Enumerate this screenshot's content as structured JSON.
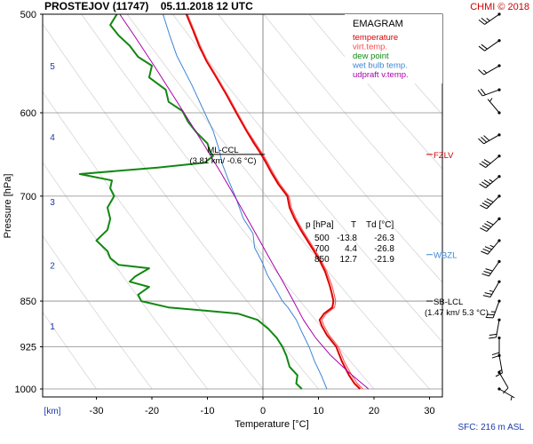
{
  "header": {
    "title": "PROSTEJOV (11747)    05.11.2018 12 UTC",
    "credit": "CHMI © 2018"
  },
  "chart_data": {
    "type": "line",
    "title": "PROSTEJOV (11747)    05.11.2018 12 UTC",
    "diagram_name": "EMAGRAM",
    "xlabel": "Temperature [°C]",
    "ylabel": "Pressure [hPa]",
    "xlim": [
      -37,
      30
    ],
    "ylim": [
      1000,
      500
    ],
    "y_scale": "log",
    "grid": true,
    "legend_position": "top-right",
    "x_ticks": [
      -30,
      -20,
      -10,
      0,
      10,
      20,
      30
    ],
    "y_ticks": [
      500,
      600,
      700,
      850,
      925,
      1000
    ],
    "height_unit_label": "[km]",
    "height_ticks": [
      {
        "label": "1",
        "p": 890
      },
      {
        "label": "2",
        "p": 795
      },
      {
        "label": "3",
        "p": 707
      },
      {
        "label": "4",
        "p": 627
      },
      {
        "label": "5",
        "p": 550
      }
    ],
    "series": [
      {
        "name": "temperature",
        "color": "#dd0000",
        "points": [
          [
            1000,
            17.5
          ],
          [
            990,
            16.5
          ],
          [
            975,
            15.5
          ],
          [
            950,
            14.2
          ],
          [
            925,
            13.2
          ],
          [
            905,
            11.5
          ],
          [
            890,
            10.6
          ],
          [
            880,
            10.2
          ],
          [
            870,
            11.0
          ],
          [
            860,
            12.5
          ],
          [
            850,
            12.7
          ],
          [
            838,
            12.4
          ],
          [
            825,
            12.0
          ],
          [
            805,
            11.2
          ],
          [
            790,
            10.3
          ],
          [
            775,
            9.2
          ],
          [
            760,
            8.0
          ],
          [
            745,
            6.8
          ],
          [
            730,
            5.7
          ],
          [
            715,
            4.8
          ],
          [
            700,
            4.4
          ],
          [
            685,
            2.8
          ],
          [
            670,
            1.5
          ],
          [
            655,
            0.3
          ],
          [
            645,
            -0.6
          ],
          [
            635,
            -1.6
          ],
          [
            620,
            -3.0
          ],
          [
            600,
            -4.8
          ],
          [
            580,
            -6.6
          ],
          [
            560,
            -8.6
          ],
          [
            545,
            -10.2
          ],
          [
            530,
            -11.5
          ],
          [
            515,
            -12.6
          ],
          [
            500,
            -13.8
          ]
        ]
      },
      {
        "name": "virt.temp.",
        "color": "#ff4a4a",
        "points": [
          [
            1000,
            18.0
          ],
          [
            990,
            17.0
          ],
          [
            975,
            16.0
          ],
          [
            950,
            14.6
          ],
          [
            925,
            13.6
          ],
          [
            905,
            11.9
          ],
          [
            890,
            11.0
          ],
          [
            880,
            10.6
          ],
          [
            870,
            11.4
          ],
          [
            860,
            12.9
          ],
          [
            850,
            13.1
          ],
          [
            838,
            12.8
          ],
          [
            825,
            12.4
          ],
          [
            805,
            11.5
          ],
          [
            790,
            10.6
          ],
          [
            775,
            9.5
          ],
          [
            760,
            8.3
          ],
          [
            745,
            7.1
          ],
          [
            730,
            6.0
          ],
          [
            715,
            5.1
          ],
          [
            700,
            4.7
          ],
          [
            685,
            3.1
          ],
          [
            670,
            1.8
          ],
          [
            655,
            0.6
          ],
          [
            645,
            -0.3
          ],
          [
            635,
            -1.3
          ],
          [
            620,
            -2.8
          ],
          [
            600,
            -4.6
          ],
          [
            580,
            -6.4
          ],
          [
            560,
            -8.4
          ],
          [
            545,
            -10.0
          ],
          [
            530,
            -11.3
          ],
          [
            515,
            -12.4
          ],
          [
            500,
            -13.6
          ]
        ]
      },
      {
        "name": "dew point",
        "color": "#118811",
        "points": [
          [
            1000,
            7.0
          ],
          [
            990,
            6.0
          ],
          [
            975,
            6.2
          ],
          [
            960,
            4.8
          ],
          [
            940,
            4.2
          ],
          [
            925,
            3.5
          ],
          [
            910,
            2.5
          ],
          [
            895,
            1.0
          ],
          [
            880,
            -1.0
          ],
          [
            870,
            -4.5
          ],
          [
            865,
            -10.5
          ],
          [
            860,
            -17.0
          ],
          [
            850,
            -21.9
          ],
          [
            840,
            -22.5
          ],
          [
            828,
            -20.5
          ],
          [
            820,
            -24.0
          ],
          [
            812,
            -23.0
          ],
          [
            800,
            -20.5
          ],
          [
            795,
            -26.0
          ],
          [
            785,
            -27.5
          ],
          [
            775,
            -28.0
          ],
          [
            760,
            -30.0
          ],
          [
            745,
            -28.0
          ],
          [
            730,
            -27.5
          ],
          [
            715,
            -28.0
          ],
          [
            700,
            -26.8
          ],
          [
            690,
            -27.5
          ],
          [
            680,
            -27.2
          ],
          [
            672,
            -33.0
          ],
          [
            664,
            -19.0
          ],
          [
            658,
            -10.5
          ],
          [
            650,
            -9.0
          ],
          [
            645,
            -9.5
          ],
          [
            635,
            -10.0
          ],
          [
            622,
            -12.0
          ],
          [
            610,
            -13.5
          ],
          [
            598,
            -14.5
          ],
          [
            588,
            -17.0
          ],
          [
            575,
            -17.5
          ],
          [
            562,
            -20.5
          ],
          [
            550,
            -20.0
          ],
          [
            541,
            -22.5
          ],
          [
            530,
            -24.0
          ],
          [
            520,
            -26.0
          ],
          [
            510,
            -27.5
          ],
          [
            500,
            -26.3
          ]
        ]
      },
      {
        "name": "wet bulb temp.",
        "color": "#3d86d4",
        "points": [
          [
            1000,
            11.5
          ],
          [
            975,
            10.5
          ],
          [
            950,
            9.3
          ],
          [
            925,
            8.3
          ],
          [
            900,
            7.0
          ],
          [
            880,
            6.0
          ],
          [
            860,
            4.5
          ],
          [
            850,
            3.5
          ],
          [
            830,
            2.2
          ],
          [
            810,
            0.8
          ],
          [
            790,
            -0.2
          ],
          [
            770,
            -1.5
          ],
          [
            750,
            -1.8
          ],
          [
            730,
            -3.5
          ],
          [
            710,
            -4.5
          ],
          [
            700,
            -5.0
          ],
          [
            680,
            -6.2
          ],
          [
            660,
            -7.3
          ],
          [
            640,
            -8.0
          ],
          [
            620,
            -9.0
          ],
          [
            600,
            -10.5
          ],
          [
            570,
            -12.8
          ],
          [
            540,
            -15.5
          ],
          [
            520,
            -16.8
          ],
          [
            500,
            -18.0
          ]
        ]
      },
      {
        "name": "udpraft v.temp.",
        "color": "#aa00aa",
        "points": [
          [
            1000,
            19.0
          ],
          [
            970,
            15.5
          ],
          [
            940,
            12.2
          ],
          [
            910,
            9.5
          ],
          [
            880,
            7.3
          ],
          [
            850,
            5.5
          ],
          [
            820,
            3.6
          ],
          [
            790,
            1.5
          ],
          [
            760,
            -0.6
          ],
          [
            730,
            -2.8
          ],
          [
            700,
            -5.1
          ],
          [
            670,
            -7.6
          ],
          [
            640,
            -10.3
          ],
          [
            610,
            -13.2
          ],
          [
            580,
            -16.3
          ],
          [
            550,
            -19.6
          ],
          [
            520,
            -23.2
          ],
          [
            500,
            -25.8
          ]
        ]
      }
    ],
    "annotations": [
      {
        "label": "ML-CCL",
        "sub": "(3.81 km/ -0.6 °C)",
        "p": 648,
        "t": -0.6
      },
      {
        "label": "FZLV",
        "p": 648
      },
      {
        "label": "WBZL",
        "p": 780
      },
      {
        "label": "SB-LCL",
        "sub": "(1.47 km/ 5.3 °C)",
        "p": 850
      }
    ],
    "table": {
      "headers": [
        "p [hPa]",
        "T",
        "Td [°C]"
      ],
      "rows": [
        [
          "500",
          "-13.8",
          "-26.3"
        ],
        [
          "700",
          "4.4",
          "-26.8"
        ],
        [
          "850",
          "12.7",
          "-21.9"
        ]
      ]
    },
    "surface_label": "SFC: 216 m ASL",
    "wind_barbs": [
      {
        "p": 1000,
        "dir": 120,
        "kt": 5
      },
      {
        "p": 970,
        "dir": 150,
        "kt": 10
      },
      {
        "p": 940,
        "dir": 170,
        "kt": 15
      },
      {
        "p": 910,
        "dir": 180,
        "kt": 20
      },
      {
        "p": 880,
        "dir": 190,
        "kt": 20
      },
      {
        "p": 850,
        "dir": 200,
        "kt": 25
      },
      {
        "p": 820,
        "dir": 210,
        "kt": 25
      },
      {
        "p": 790,
        "dir": 215,
        "kt": 30
      },
      {
        "p": 760,
        "dir": 220,
        "kt": 35
      },
      {
        "p": 730,
        "dir": 225,
        "kt": 40
      },
      {
        "p": 700,
        "dir": 225,
        "kt": 40
      },
      {
        "p": 675,
        "dir": 230,
        "kt": 35
      },
      {
        "p": 650,
        "dir": 230,
        "kt": 30
      },
      {
        "p": 625,
        "dir": 240,
        "kt": 30
      },
      {
        "p": 600,
        "dir": 320,
        "kt": 5
      },
      {
        "p": 575,
        "dir": 250,
        "kt": 20
      },
      {
        "p": 550,
        "dir": 240,
        "kt": 15
      },
      {
        "p": 525,
        "dir": 235,
        "kt": 20
      },
      {
        "p": 500,
        "dir": 235,
        "kt": 25
      }
    ],
    "series_color_names": {
      "temperature": "red",
      "virt.temp.": "light red",
      "dew point": "green",
      "wet bulb temp.": "blue",
      "udpraft v.temp.": "purple"
    }
  }
}
